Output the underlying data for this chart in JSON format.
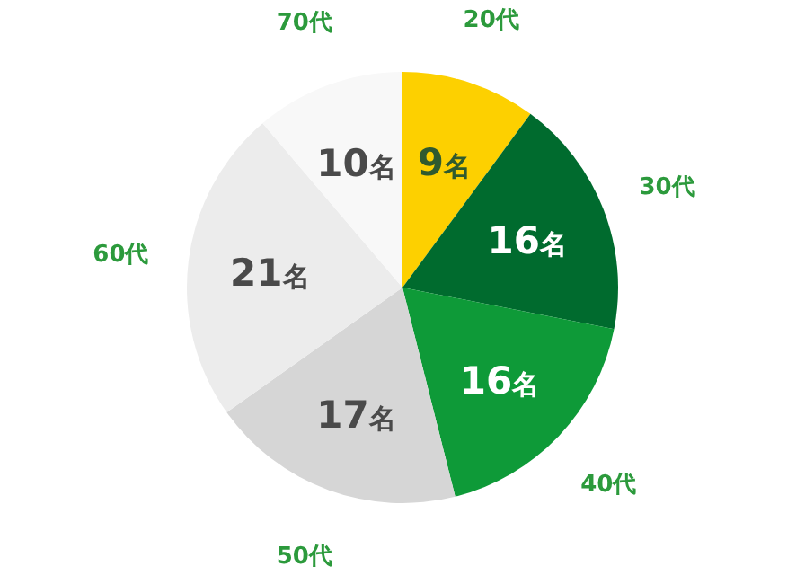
{
  "chart_data": {
    "type": "pie",
    "categories": [
      "20代",
      "30代",
      "40代",
      "50代",
      "60代",
      "70代"
    ],
    "values": [
      9,
      16,
      16,
      17,
      21,
      10
    ],
    "value_labels": [
      "9名",
      "16名",
      "16名",
      "17名",
      "21名",
      "10名"
    ],
    "colors": [
      "#fdd000",
      "#006b2e",
      "#0e9a38",
      "#d6d6d6",
      "#ececec",
      "#f8f8f8"
    ]
  }
}
